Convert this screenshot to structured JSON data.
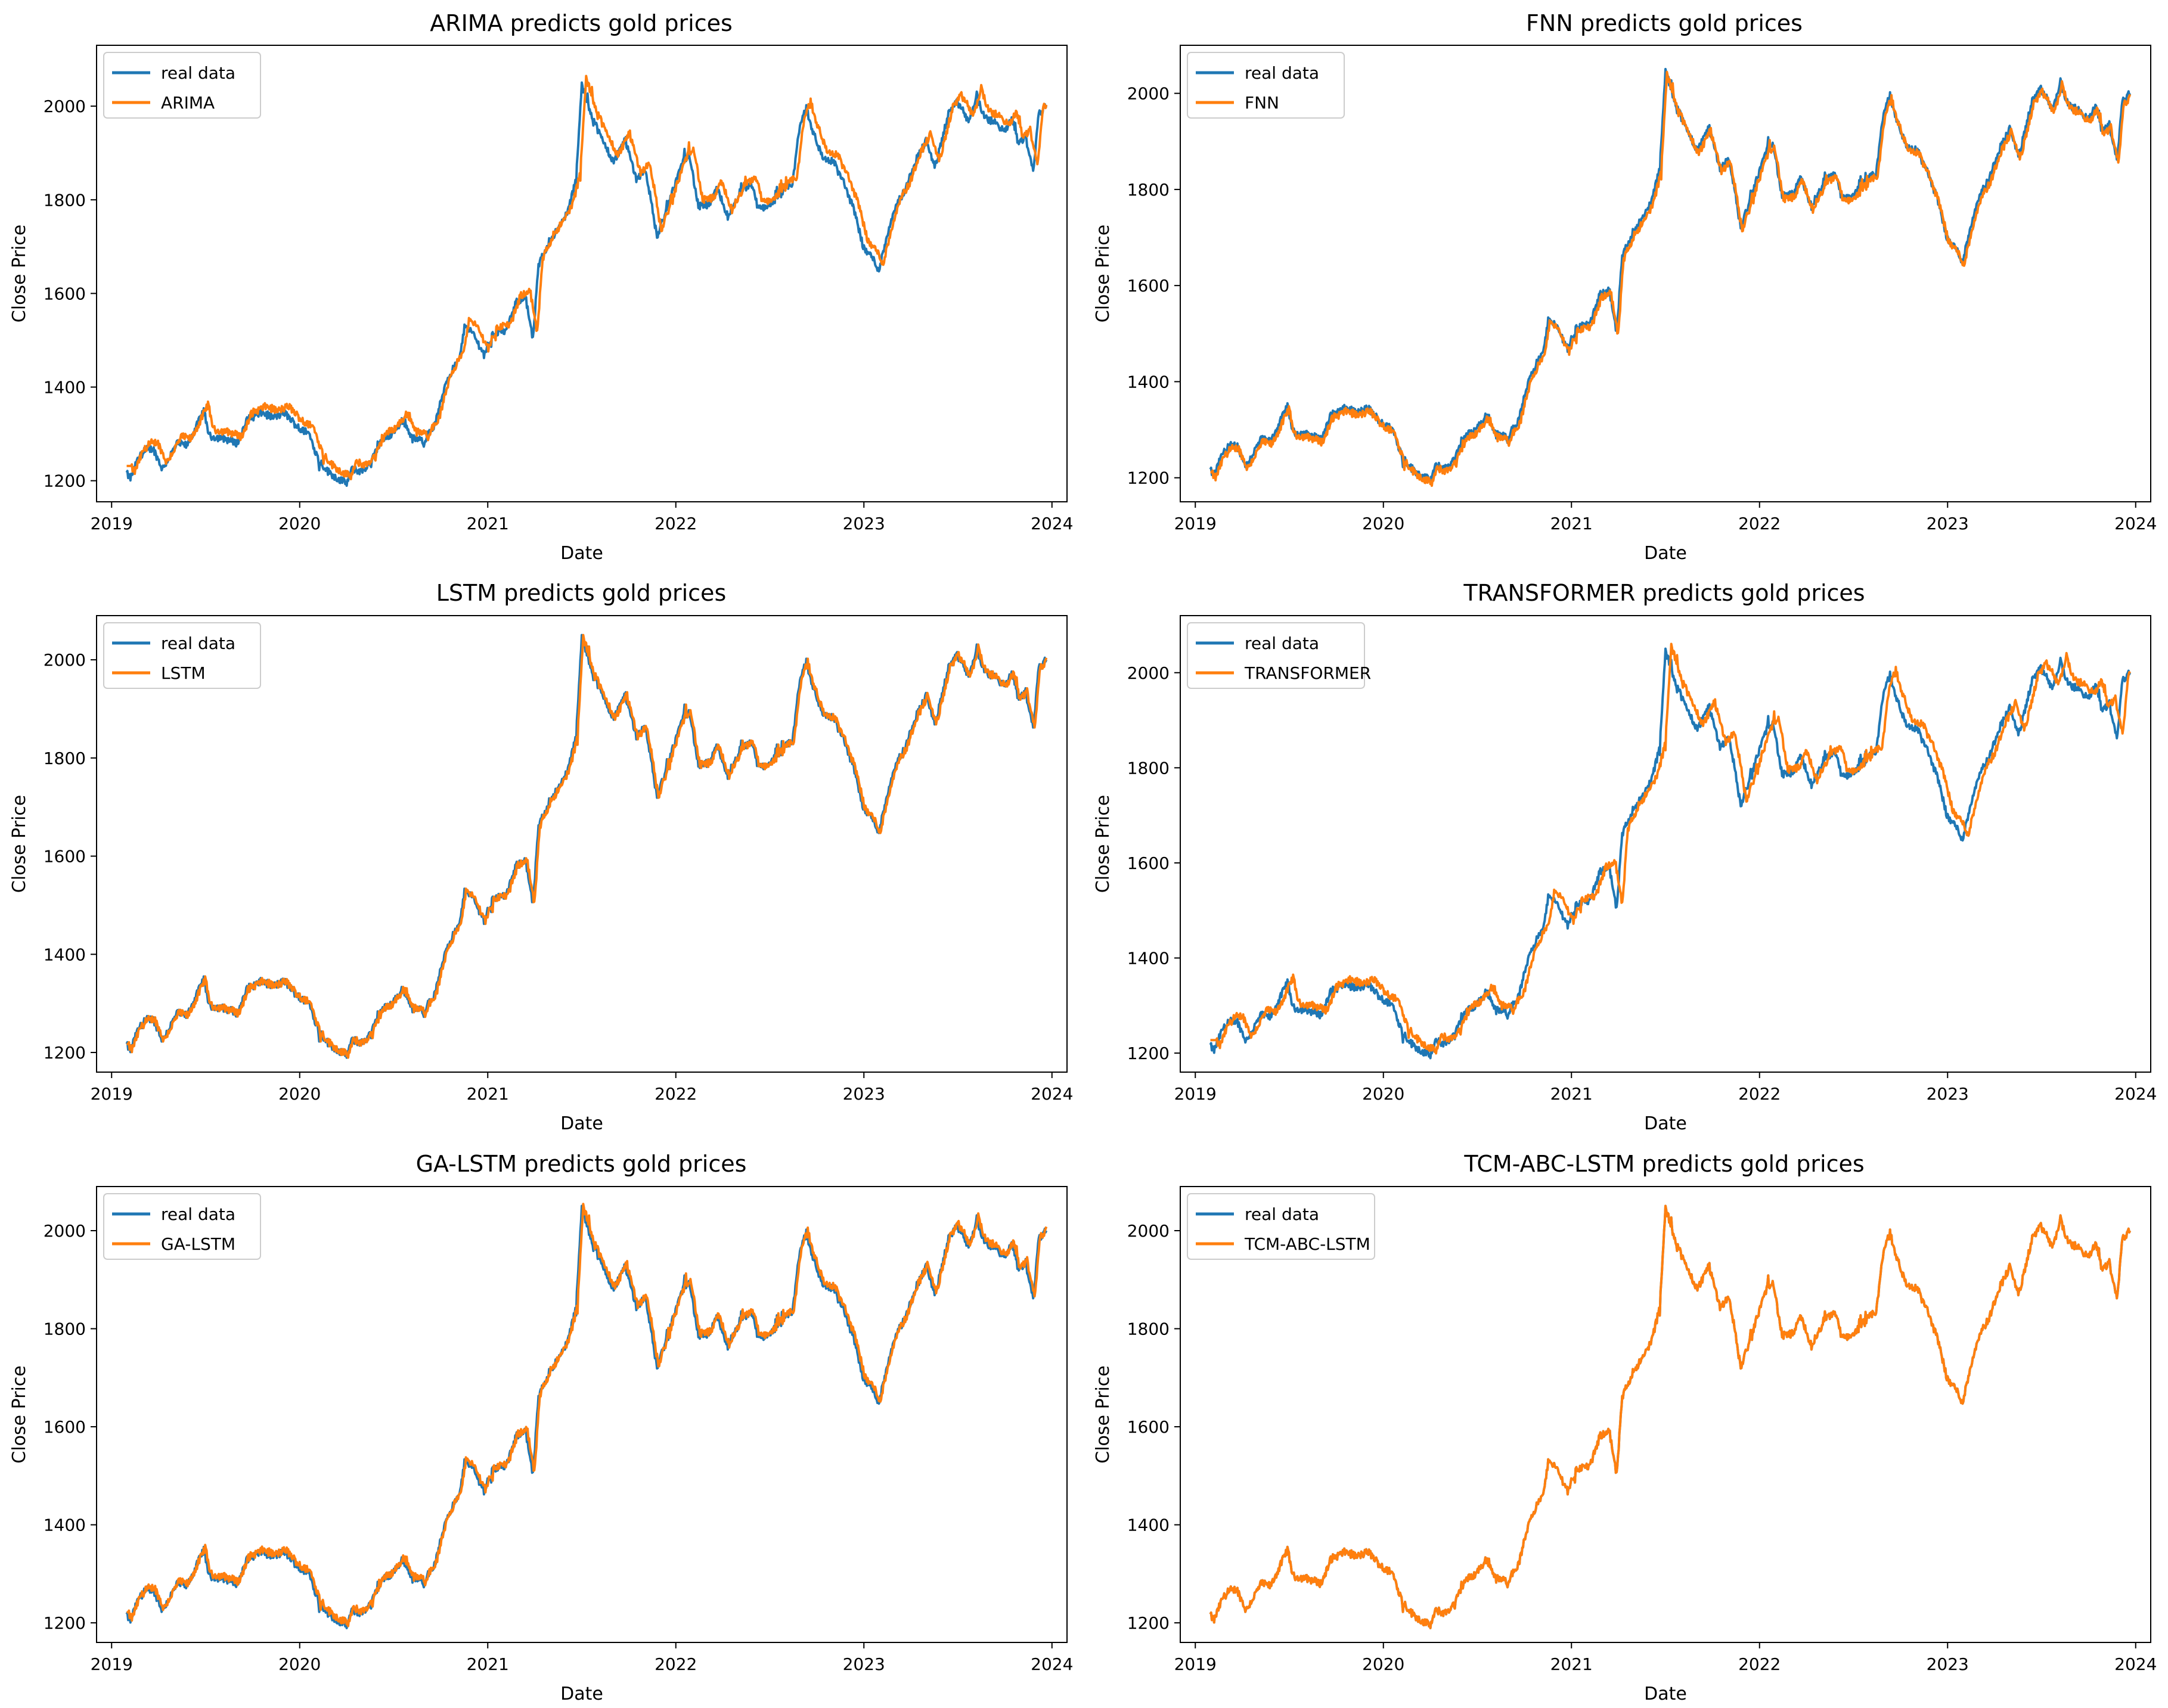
{
  "figure": {
    "background": "#ffffff"
  },
  "colors": {
    "real": "#1f77b4",
    "pred": "#ff7f0e"
  },
  "chart_data": [
    {
      "type": "line",
      "title": "ARIMA predicts gold prices",
      "xlabel": "Date",
      "ylabel": "Close Price",
      "xlim": [
        2018.92,
        2024.08
      ],
      "ylim": [
        1155,
        2130
      ],
      "xticks": [
        2019,
        2020,
        2021,
        2022,
        2023,
        2024
      ],
      "yticks": [
        1200,
        1400,
        1600,
        1800,
        2000
      ],
      "legend": "top-left",
      "series": [
        {
          "name": "real data",
          "color": "#1f77b4",
          "key": "real"
        },
        {
          "name": "ARIMA",
          "color": "#ff7f0e",
          "key": "pred"
        }
      ],
      "pred_lag_days": 6,
      "pred_offset": 14
    },
    {
      "type": "line",
      "title": "FNN predicts gold prices",
      "xlabel": "Date",
      "ylabel": "Close Price",
      "xlim": [
        2018.92,
        2024.08
      ],
      "ylim": [
        1150,
        2100
      ],
      "xticks": [
        2019,
        2020,
        2021,
        2022,
        2023,
        2024
      ],
      "yticks": [
        1200,
        1400,
        1600,
        1800,
        2000
      ],
      "legend": "top-left",
      "series": [
        {
          "name": "real data",
          "color": "#1f77b4",
          "key": "real"
        },
        {
          "name": "FNN",
          "color": "#ff7f0e",
          "key": "pred"
        }
      ],
      "pred_lag_days": 2,
      "pred_offset": -6
    },
    {
      "type": "line",
      "title": "LSTM predicts gold prices",
      "xlabel": "Date",
      "ylabel": "Close Price",
      "xlim": [
        2018.92,
        2024.08
      ],
      "ylim": [
        1160,
        2090
      ],
      "xticks": [
        2019,
        2020,
        2021,
        2022,
        2023,
        2024
      ],
      "yticks": [
        1200,
        1400,
        1600,
        1800,
        2000
      ],
      "legend": "top-left",
      "series": [
        {
          "name": "real data",
          "color": "#1f77b4",
          "key": "real"
        },
        {
          "name": "LSTM",
          "color": "#ff7f0e",
          "key": "pred"
        }
      ],
      "pred_lag_days": 2,
      "pred_offset": 0
    },
    {
      "type": "line",
      "title": "TRANSFORMER predicts gold prices",
      "xlabel": "Date",
      "ylabel": "Close Price",
      "xlim": [
        2018.92,
        2024.08
      ],
      "ylim": [
        1160,
        2120
      ],
      "xticks": [
        2019,
        2020,
        2021,
        2022,
        2023,
        2024
      ],
      "yticks": [
        1200,
        1400,
        1600,
        1800,
        2000
      ],
      "legend": "top-left",
      "series": [
        {
          "name": "real data",
          "color": "#1f77b4",
          "key": "real"
        },
        {
          "name": "TRANSFORMER",
          "color": "#ff7f0e",
          "key": "pred"
        }
      ],
      "pred_lag_days": 8,
      "pred_offset": 10
    },
    {
      "type": "line",
      "title": "GA-LSTM predicts gold prices",
      "xlabel": "Date",
      "ylabel": "Close Price",
      "xlim": [
        2018.92,
        2024.08
      ],
      "ylim": [
        1160,
        2090
      ],
      "xticks": [
        2019,
        2020,
        2021,
        2022,
        2023,
        2024
      ],
      "yticks": [
        1200,
        1400,
        1600,
        1800,
        2000
      ],
      "legend": "top-left",
      "series": [
        {
          "name": "real data",
          "color": "#1f77b4",
          "key": "real"
        },
        {
          "name": "GA-LSTM",
          "color": "#ff7f0e",
          "key": "pred"
        }
      ],
      "pred_lag_days": 2,
      "pred_offset": 4
    },
    {
      "type": "line",
      "title": "TCM-ABC-LSTM predicts gold prices",
      "xlabel": "Date",
      "ylabel": "Close Price",
      "xlim": [
        2018.92,
        2024.08
      ],
      "ylim": [
        1160,
        2090
      ],
      "xticks": [
        2019,
        2020,
        2021,
        2022,
        2023,
        2024
      ],
      "yticks": [
        1200,
        1400,
        1600,
        1800,
        2000
      ],
      "legend": "top-left",
      "series": [
        {
          "name": "real data",
          "color": "#1f77b4",
          "key": "real"
        },
        {
          "name": "TCM-ABC-LSTM",
          "color": "#ff7f0e",
          "key": "pred"
        }
      ],
      "pred_lag_days": 0,
      "pred_offset": 0
    }
  ],
  "real_data_anchors": {
    "description": "approximate daily close price path (date as decimal year, price in USD)",
    "points": [
      [
        2019.08,
        1215
      ],
      [
        2019.1,
        1205
      ],
      [
        2019.15,
        1255
      ],
      [
        2019.22,
        1270
      ],
      [
        2019.27,
        1225
      ],
      [
        2019.35,
        1280
      ],
      [
        2019.4,
        1275
      ],
      [
        2019.45,
        1315
      ],
      [
        2019.49,
        1350
      ],
      [
        2019.52,
        1295
      ],
      [
        2019.6,
        1290
      ],
      [
        2019.67,
        1280
      ],
      [
        2019.72,
        1330
      ],
      [
        2019.8,
        1345
      ],
      [
        2019.86,
        1335
      ],
      [
        2019.92,
        1345
      ],
      [
        2020.0,
        1310
      ],
      [
        2020.05,
        1300
      ],
      [
        2020.1,
        1245
      ],
      [
        2020.15,
        1220
      ],
      [
        2020.2,
        1205
      ],
      [
        2020.25,
        1195
      ],
      [
        2020.28,
        1225
      ],
      [
        2020.33,
        1220
      ],
      [
        2020.38,
        1240
      ],
      [
        2020.43,
        1285
      ],
      [
        2020.49,
        1300
      ],
      [
        2020.55,
        1330
      ],
      [
        2020.6,
        1290
      ],
      [
        2020.66,
        1285
      ],
      [
        2020.72,
        1320
      ],
      [
        2020.78,
        1415
      ],
      [
        2020.85,
        1460
      ],
      [
        2020.88,
        1535
      ],
      [
        2020.92,
        1515
      ],
      [
        2020.98,
        1470
      ],
      [
        2021.03,
        1515
      ],
      [
        2021.1,
        1520
      ],
      [
        2021.15,
        1580
      ],
      [
        2021.2,
        1595
      ],
      [
        2021.24,
        1500
      ],
      [
        2021.27,
        1660
      ],
      [
        2021.33,
        1715
      ],
      [
        2021.38,
        1740
      ],
      [
        2021.43,
        1780
      ],
      [
        2021.47,
        1845
      ],
      [
        2021.5,
        2045
      ],
      [
        2021.55,
        1985
      ],
      [
        2021.6,
        1935
      ],
      [
        2021.67,
        1880
      ],
      [
        2021.73,
        1930
      ],
      [
        2021.79,
        1845
      ],
      [
        2021.84,
        1865
      ],
      [
        2021.9,
        1720
      ],
      [
        2021.96,
        1790
      ],
      [
        2022.03,
        1875
      ],
      [
        2022.07,
        1900
      ],
      [
        2022.12,
        1785
      ],
      [
        2022.18,
        1790
      ],
      [
        2022.22,
        1825
      ],
      [
        2022.28,
        1760
      ],
      [
        2022.34,
        1815
      ],
      [
        2022.4,
        1835
      ],
      [
        2022.44,
        1780
      ],
      [
        2022.5,
        1790
      ],
      [
        2022.56,
        1815
      ],
      [
        2022.62,
        1835
      ],
      [
        2022.66,
        1960
      ],
      [
        2022.69,
        1990
      ],
      [
        2022.74,
        1935
      ],
      [
        2022.78,
        1890
      ],
      [
        2022.84,
        1880
      ],
      [
        2022.9,
        1830
      ],
      [
        2022.95,
        1775
      ],
      [
        2023.0,
        1695
      ],
      [
        2023.04,
        1680
      ],
      [
        2023.08,
        1650
      ],
      [
        2023.13,
        1735
      ],
      [
        2023.17,
        1790
      ],
      [
        2023.22,
        1820
      ],
      [
        2023.27,
        1880
      ],
      [
        2023.33,
        1925
      ],
      [
        2023.38,
        1870
      ],
      [
        2023.45,
        1985
      ],
      [
        2023.5,
        2010
      ],
      [
        2023.56,
        1965
      ],
      [
        2023.6,
        2025
      ],
      [
        2023.64,
        1975
      ],
      [
        2023.7,
        1965
      ],
      [
        2023.75,
        1945
      ],
      [
        2023.79,
        1975
      ],
      [
        2023.82,
        1920
      ],
      [
        2023.86,
        1935
      ],
      [
        2023.9,
        1860
      ],
      [
        2023.93,
        1985
      ],
      [
        2023.97,
        2000
      ]
    ]
  }
}
